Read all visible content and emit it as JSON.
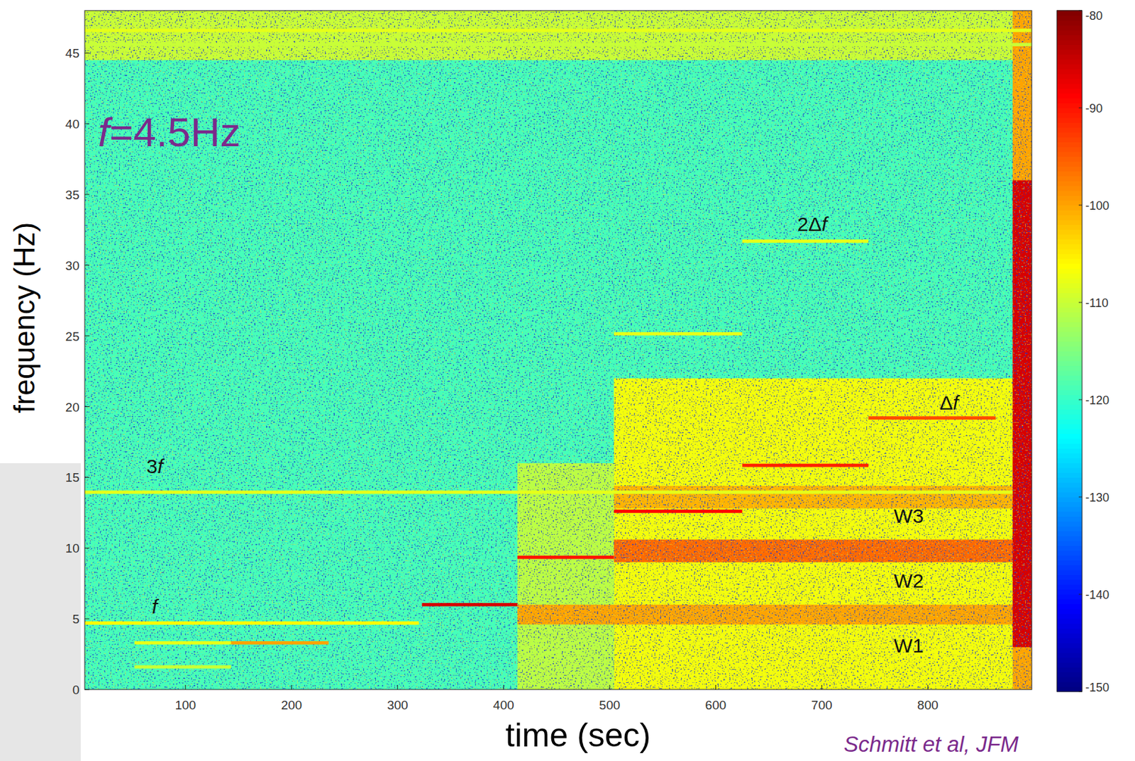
{
  "chart_data": {
    "type": "spectrogram",
    "title": "f=4.5Hz",
    "source": "Schmitt et al, JFM",
    "xlabel": "time (sec)",
    "ylabel": "frequency (Hz)",
    "xlim": [
      5,
      898
    ],
    "ylim": [
      0,
      48
    ],
    "xticks": [
      100,
      200,
      300,
      400,
      500,
      600,
      700,
      800
    ],
    "yticks": [
      0,
      5,
      10,
      15,
      20,
      25,
      30,
      35,
      40,
      45
    ],
    "grid": false,
    "colorbar": {
      "lim": [
        -150,
        -80
      ],
      "ticks": [
        -80,
        -90,
        -100,
        -110,
        -120,
        -130,
        -140,
        -150
      ]
    },
    "regions": [
      {
        "t0": 5,
        "t1": 898,
        "f0": 0,
        "f1": 48,
        "level": -119
      },
      {
        "t0": 5,
        "t1": 898,
        "f0": 44.5,
        "f1": 48,
        "level": -110
      },
      {
        "t0": 413,
        "t1": 504,
        "f0": 0,
        "f1": 16,
        "level": -111
      },
      {
        "t0": 504,
        "t1": 880,
        "f0": 0,
        "f1": 22,
        "level": -107
      },
      {
        "t0": 413,
        "t1": 880,
        "f0": 4.6,
        "f1": 6,
        "level": -100
      },
      {
        "t0": 504,
        "t1": 880,
        "f0": 9,
        "f1": 10.6,
        "level": -96
      },
      {
        "t0": 504,
        "t1": 880,
        "f0": 12.8,
        "f1": 14.4,
        "level": -101
      },
      {
        "t0": 880,
        "t1": 898,
        "f0": 0,
        "f1": 48,
        "level": -100
      },
      {
        "t0": 880,
        "t1": 898,
        "f0": 3,
        "f1": 36,
        "level": -86
      }
    ],
    "tones": [
      {
        "f": 46.6,
        "t0": 5,
        "t1": 898,
        "level": -108
      },
      {
        "f": 45.6,
        "t0": 5,
        "t1": 898,
        "level": -110
      },
      {
        "f": 4.7,
        "t0": 5,
        "t1": 320,
        "level": -106
      },
      {
        "f": 13.95,
        "t0": 5,
        "t1": 880,
        "level": -108
      },
      {
        "f": 1.6,
        "t0": 52,
        "t1": 143,
        "level": -110
      },
      {
        "f": 3.3,
        "t0": 52,
        "t1": 143,
        "level": -108
      },
      {
        "f": 3.3,
        "t0": 143,
        "t1": 235,
        "level": -100
      },
      {
        "f": 6.0,
        "t0": 323,
        "t1": 413,
        "level": -86
      },
      {
        "f": 9.35,
        "t0": 413,
        "t1": 504,
        "level": -90
      },
      {
        "f": 12.6,
        "t0": 504,
        "t1": 625,
        "level": -89
      },
      {
        "f": 15.85,
        "t0": 625,
        "t1": 744,
        "level": -91
      },
      {
        "f": 19.2,
        "t0": 744,
        "t1": 864,
        "level": -94
      },
      {
        "f": 25.15,
        "t0": 504,
        "t1": 625,
        "level": -108
      },
      {
        "f": 31.7,
        "t0": 625,
        "t1": 744,
        "level": -108
      }
    ],
    "annotations": [
      {
        "text": "2Δf",
        "x": 691,
        "y": 32.4
      },
      {
        "text": "Δf",
        "x": 820,
        "y": 19.8
      },
      {
        "text": "3f",
        "x": 71,
        "y": 15.3
      },
      {
        "text": "f",
        "x": 71,
        "y": 5.4
      },
      {
        "text": "W3",
        "x": 782,
        "y": 11.8
      },
      {
        "text": "W2",
        "x": 782,
        "y": 7.2
      },
      {
        "text": "W1",
        "x": 782,
        "y": 2.6
      }
    ]
  }
}
